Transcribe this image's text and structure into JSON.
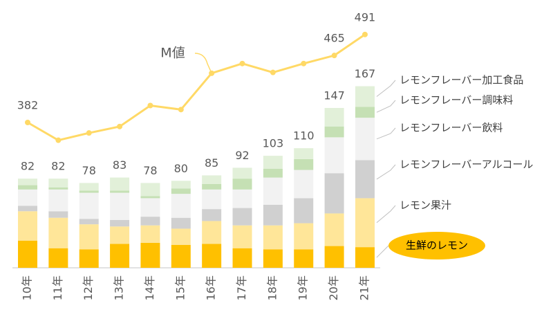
{
  "chart_data": {
    "type": "bar",
    "categories": [
      "10年",
      "11年",
      "12年",
      "13年",
      "14年",
      "15年",
      "16年",
      "17年",
      "18年",
      "19年",
      "20年",
      "21年"
    ],
    "series": [
      {
        "name": "生鮮のレモン",
        "color": "#ffc000",
        "values": [
          25,
          18,
          17,
          22,
          23,
          21,
          22,
          18,
          17,
          17,
          20,
          19
        ]
      },
      {
        "name": "レモン果汁",
        "color": "#ffe699",
        "values": [
          27,
          28,
          23,
          16,
          16,
          15,
          21,
          21,
          22,
          24,
          30,
          45
        ]
      },
      {
        "name": "レモンフレーバーアルコール",
        "color": "#d0d0d0",
        "values": [
          5,
          6,
          5,
          6,
          8,
          10,
          11,
          16,
          19,
          23,
          37,
          35
        ]
      },
      {
        "name": "レモンフレーバー飲料",
        "color": "#f2f2f2",
        "values": [
          15,
          20,
          24,
          25,
          17,
          22,
          18,
          17,
          25,
          26,
          33,
          39
        ]
      },
      {
        "name": "レモンフレーバー調味料",
        "color": "#c5e0b4",
        "values": [
          4,
          2,
          2,
          2,
          2,
          5,
          5,
          10,
          8,
          10,
          10,
          10
        ]
      },
      {
        "name": "レモンフレーバー加工食品",
        "color": "#e2f0d9",
        "values": [
          6,
          8,
          7,
          12,
          12,
          7,
          8,
          10,
          12,
          10,
          17,
          19
        ]
      },
      {
        "name": "M値",
        "type": "line",
        "axis": "y2",
        "color": "#ffd966",
        "values": [
          382,
          360,
          369,
          377,
          403,
          398,
          443,
          455,
          444,
          455,
          465,
          491
        ],
        "value_labels": [
          "382",
          null,
          null,
          null,
          null,
          null,
          null,
          null,
          null,
          null,
          "465",
          "491"
        ]
      }
    ],
    "totals": [
      82,
      82,
      78,
      83,
      78,
      80,
      85,
      92,
      103,
      110,
      147,
      167
    ],
    "ylim": [
      0,
      245
    ],
    "y2lim": [
      202,
      532
    ],
    "grid": false
  }
}
